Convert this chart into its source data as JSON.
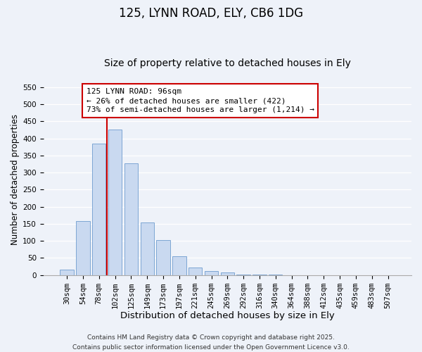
{
  "title": "125, LYNN ROAD, ELY, CB6 1DG",
  "subtitle": "Size of property relative to detached houses in Ely",
  "xlabel": "Distribution of detached houses by size in Ely",
  "ylabel": "Number of detached properties",
  "categories": [
    "30sqm",
    "54sqm",
    "78sqm",
    "102sqm",
    "125sqm",
    "149sqm",
    "173sqm",
    "197sqm",
    "221sqm",
    "245sqm",
    "269sqm",
    "292sqm",
    "316sqm",
    "340sqm",
    "364sqm",
    "388sqm",
    "412sqm",
    "435sqm",
    "459sqm",
    "483sqm",
    "507sqm"
  ],
  "values": [
    15,
    158,
    385,
    425,
    328,
    153,
    102,
    55,
    22,
    12,
    8,
    2,
    1,
    1,
    0,
    0,
    0,
    0,
    0,
    0,
    0
  ],
  "bar_color": "#c9d9f0",
  "bar_edge_color": "#7da6d4",
  "vline_x_index": 3,
  "vline_color": "#cc0000",
  "annotation_line1": "125 LYNN ROAD: 96sqm",
  "annotation_line2": "← 26% of detached houses are smaller (422)",
  "annotation_line3": "73% of semi-detached houses are larger (1,214) →",
  "annotation_box_color": "#ffffff",
  "annotation_box_edge_color": "#cc0000",
  "ylim": [
    0,
    560
  ],
  "yticks": [
    0,
    50,
    100,
    150,
    200,
    250,
    300,
    350,
    400,
    450,
    500,
    550
  ],
  "footer_line1": "Contains HM Land Registry data © Crown copyright and database right 2025.",
  "footer_line2": "Contains public sector information licensed under the Open Government Licence v3.0.",
  "bg_color": "#eef2f9",
  "plot_bg_color": "#eef2f9",
  "grid_color": "#ffffff",
  "title_fontsize": 12,
  "subtitle_fontsize": 10,
  "xlabel_fontsize": 9.5,
  "ylabel_fontsize": 8.5,
  "tick_fontsize": 7.5,
  "annotation_fontsize": 8,
  "footer_fontsize": 6.5
}
